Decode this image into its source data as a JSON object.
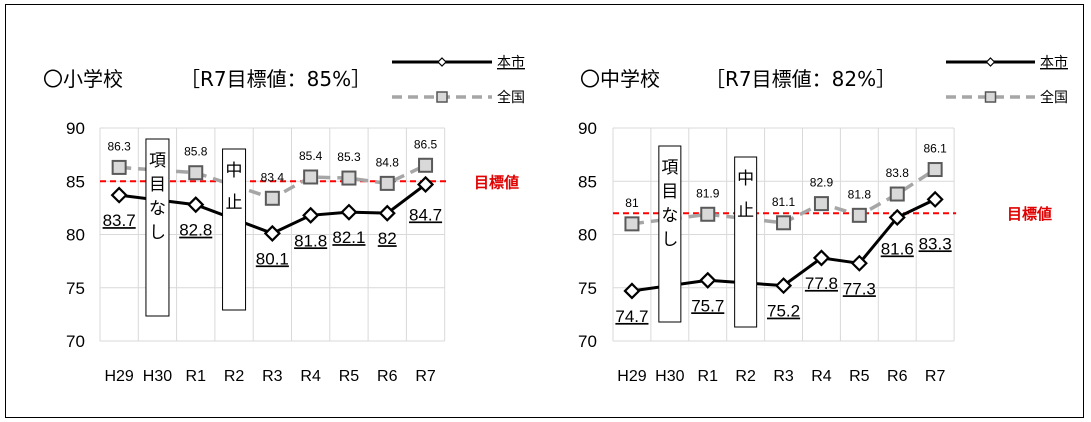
{
  "colors": {
    "city": "#000000",
    "national": "#a6a6a6",
    "target": "#ff0000",
    "grid": "#d9d9d9"
  },
  "legend": {
    "city": "本市",
    "national": "全国"
  },
  "target_label": "目標値",
  "chart_data": [
    {
      "type": "line",
      "title": "〇小学校",
      "target_title": "［R7目標値：85%］",
      "categories": [
        "H29",
        "H30",
        "R1",
        "R2",
        "R3",
        "R4",
        "R5",
        "R6",
        "R7"
      ],
      "ylim": [
        70,
        90
      ],
      "yticks": [
        70,
        75,
        80,
        85,
        90
      ],
      "grid": true,
      "target": 85,
      "series": [
        {
          "name": "本市",
          "values": [
            83.7,
            null,
            82.8,
            null,
            80.1,
            81.8,
            82.1,
            82,
            84.7
          ],
          "labels": [
            "83.7",
            "",
            "82.8",
            "",
            "80.1",
            "81.8",
            "82.1",
            "82",
            "84.7"
          ]
        },
        {
          "name": "全国",
          "values": [
            86.3,
            null,
            85.8,
            null,
            83.4,
            85.4,
            85.3,
            84.8,
            86.5
          ],
          "labels": [
            "86.3",
            "",
            "85.8",
            "",
            "83.4",
            "85.4",
            "85.3",
            "84.8",
            "86.5"
          ]
        }
      ],
      "annotations": [
        {
          "category": "H30",
          "text": "項目なし"
        },
        {
          "category": "R2",
          "text": "中止"
        }
      ]
    },
    {
      "type": "line",
      "title": "〇中学校",
      "target_title": "［R7目標値：82%］",
      "categories": [
        "H29",
        "H30",
        "R1",
        "R2",
        "R3",
        "R4",
        "R5",
        "R6",
        "R7"
      ],
      "ylim": [
        70,
        90
      ],
      "yticks": [
        70,
        75,
        80,
        85,
        90
      ],
      "grid": true,
      "target": 82,
      "series": [
        {
          "name": "本市",
          "values": [
            74.7,
            null,
            75.7,
            null,
            75.2,
            77.8,
            77.3,
            81.6,
            83.3
          ],
          "labels": [
            "74.7",
            "",
            "75.7",
            "",
            "75.2",
            "77.8",
            "77.3",
            "81.6",
            "83.3"
          ]
        },
        {
          "name": "全国",
          "values": [
            81,
            null,
            81.9,
            null,
            81.1,
            82.9,
            81.8,
            83.8,
            86.1
          ],
          "labels": [
            "81",
            "",
            "81.9",
            "",
            "81.1",
            "82.9",
            "81.8",
            "83.8",
            "86.1"
          ]
        }
      ],
      "annotations": [
        {
          "category": "H30",
          "text": "項目なし"
        },
        {
          "category": "R2",
          "text": "中止"
        }
      ]
    }
  ]
}
